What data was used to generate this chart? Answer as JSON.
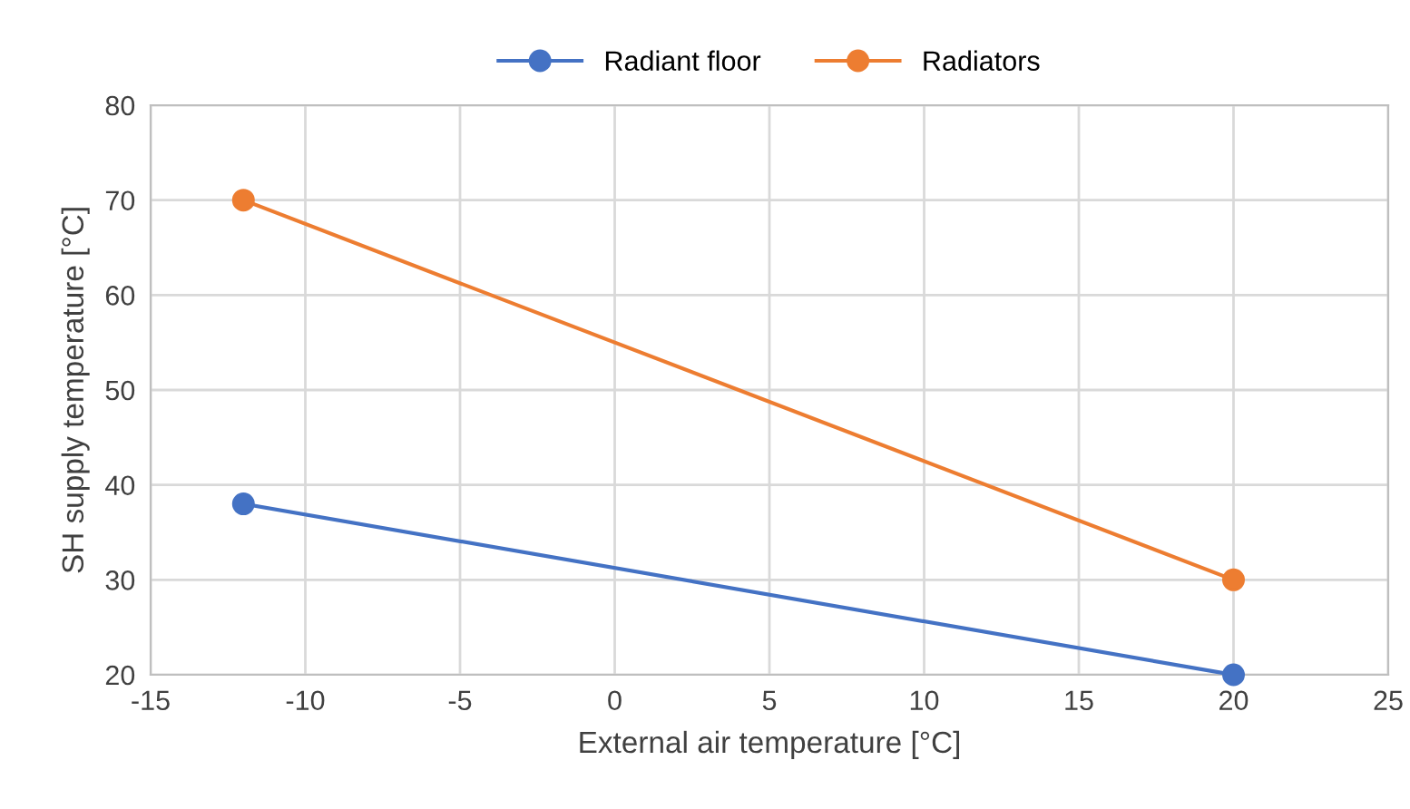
{
  "chart_data": {
    "type": "line",
    "xlabel": "External air temperature [°C]",
    "ylabel": "SH supply temperature [°C]",
    "x": [
      -12,
      20
    ],
    "series": [
      {
        "name": "Radiant floor",
        "color": "#4472c4",
        "values": [
          38,
          20
        ]
      },
      {
        "name": "Radiators",
        "color": "#ed7d31",
        "values": [
          70,
          30
        ]
      }
    ],
    "xlim": [
      -15,
      25
    ],
    "xticks": [
      -15,
      -10,
      -5,
      0,
      5,
      10,
      15,
      20,
      25
    ],
    "ylim": [
      20,
      80
    ],
    "yticks": [
      20,
      30,
      40,
      50,
      60,
      70,
      80
    ],
    "grid": true,
    "legend": "top",
    "marker": "circle",
    "line_style": "solid"
  }
}
